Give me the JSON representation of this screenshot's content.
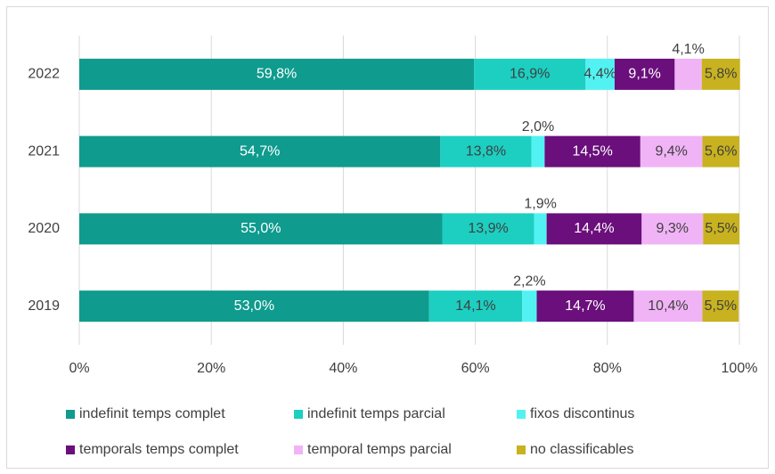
{
  "chart_data": {
    "type": "stacked_bar_horizontal",
    "categories": [
      "2022",
      "2021",
      "2020",
      "2019"
    ],
    "series": [
      {
        "name": "indefinit temps complet",
        "color": "#0f9b8e",
        "values": [
          59.8,
          54.7,
          55.0,
          53.0
        ],
        "value_labels": [
          "59,8%",
          "54,7%",
          "55,0%",
          "53,0%"
        ]
      },
      {
        "name": "indefinit temps parcial",
        "color": "#1ccfc1",
        "values": [
          16.9,
          13.8,
          13.9,
          14.1
        ],
        "value_labels": [
          "16,9%",
          "13,8%",
          "13,9%",
          "14,1%"
        ]
      },
      {
        "name": "fixos discontinus",
        "color": "#52f2f2",
        "values": [
          4.4,
          2.0,
          1.9,
          2.2
        ],
        "value_labels": [
          "4,4%",
          "2,0%",
          "1,9%",
          "2,2%"
        ]
      },
      {
        "name": "temporals temps complet",
        "color": "#6a0f7b",
        "values": [
          9.1,
          14.5,
          14.4,
          14.7
        ],
        "value_labels": [
          "9,1%",
          "14,5%",
          "14,4%",
          "14,7%"
        ]
      },
      {
        "name": "temporal temps parcial",
        "color": "#f0b4f6",
        "values": [
          4.1,
          9.4,
          9.3,
          10.4
        ],
        "value_labels": [
          "4,1%",
          "9,4%",
          "9,3%",
          "10,4%"
        ]
      },
      {
        "name": "no classificables",
        "color": "#c8b21f",
        "values": [
          5.8,
          5.6,
          5.5,
          5.5
        ],
        "value_labels": [
          "5,8%",
          "5,6%",
          "5,5%",
          "5,5%"
        ]
      }
    ],
    "xlim": [
      0,
      100
    ],
    "xticks": [
      {
        "value": 0,
        "label": "0%"
      },
      {
        "value": 20,
        "label": "20%"
      },
      {
        "value": 40,
        "label": "40%"
      },
      {
        "value": 60,
        "label": "60%"
      },
      {
        "value": 80,
        "label": "80%"
      },
      {
        "value": 100,
        "label": "100%"
      }
    ],
    "grid": true,
    "legend": "bottom"
  }
}
